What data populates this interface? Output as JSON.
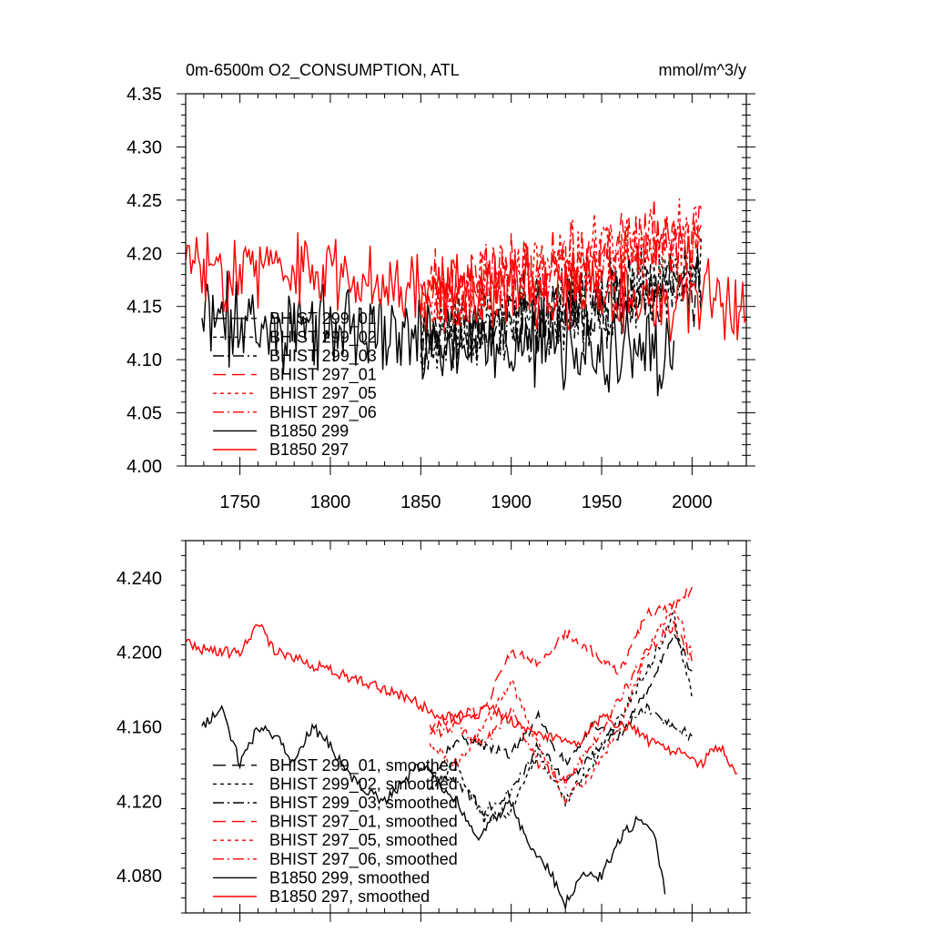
{
  "chart_data": [
    {
      "type": "line",
      "title": "0m-6500m O2_CONSUMPTION, ATL",
      "units": "mmol/m^3/y",
      "xlim": [
        1720,
        2030
      ],
      "ylim": [
        4.0,
        4.35
      ],
      "xticks": [
        1750,
        1800,
        1850,
        1900,
        1950,
        2000
      ],
      "xtick_labels": [
        "1750",
        "1800",
        "1850",
        "1900",
        "1950",
        "2000"
      ],
      "yticks": [
        4.0,
        4.05,
        4.1,
        4.15,
        4.2,
        4.25,
        4.3,
        4.35
      ],
      "ytick_labels": [
        "4.00",
        "4.05",
        "4.10",
        "4.15",
        "4.20",
        "4.25",
        "4.30",
        "4.35"
      ],
      "legend_position": "bottom-left",
      "series": [
        {
          "name": "BHIST 299_01",
          "color": "#000000",
          "dash": "long-dash",
          "x_start": 1850,
          "x_end": 2005,
          "mean_start": 4.12,
          "mean_end": 4.17,
          "amplitude": 0.045,
          "seed": 11
        },
        {
          "name": "BHIST 299_02",
          "color": "#000000",
          "dash": "short-dash",
          "x_start": 1850,
          "x_end": 2005,
          "mean_start": 4.12,
          "mean_end": 4.18,
          "amplitude": 0.045,
          "seed": 23
        },
        {
          "name": "BHIST 299_03",
          "color": "#000000",
          "dash": "dash-dot",
          "x_start": 1850,
          "x_end": 2005,
          "mean_start": 4.125,
          "mean_end": 4.17,
          "amplitude": 0.045,
          "seed": 37
        },
        {
          "name": "BHIST 297_01",
          "color": "#ff0000",
          "dash": "long-dash",
          "x_start": 1850,
          "x_end": 2005,
          "mean_start": 4.16,
          "mean_end": 4.22,
          "amplitude": 0.045,
          "seed": 41
        },
        {
          "name": "BHIST 297_05",
          "color": "#ff0000",
          "dash": "short-dash",
          "x_start": 1850,
          "x_end": 2005,
          "mean_start": 4.155,
          "mean_end": 4.22,
          "amplitude": 0.045,
          "seed": 53
        },
        {
          "name": "BHIST 297_06",
          "color": "#ff0000",
          "dash": "dash-dot",
          "x_start": 1850,
          "x_end": 2005,
          "mean_start": 4.16,
          "mean_end": 4.215,
          "amplitude": 0.045,
          "seed": 67
        },
        {
          "name": "B1850 299",
          "color": "#000000",
          "dash": "solid",
          "x_start": 1729,
          "x_end": 1990,
          "mean_start": 4.14,
          "mean_end": 4.1,
          "amplitude": 0.05,
          "seed": 71
        },
        {
          "name": "B1850 297",
          "color": "#ff0000",
          "dash": "solid",
          "x_start": 1720,
          "x_end": 2030,
          "mean_start": 4.19,
          "mean_end": 4.15,
          "amplitude": 0.045,
          "seed": 83
        }
      ]
    },
    {
      "type": "line",
      "title": "",
      "xlim": [
        1720,
        2030
      ],
      "ylim": [
        4.06,
        4.26
      ],
      "xticks": [
        1750,
        1800,
        1850,
        1900,
        1950,
        2000
      ],
      "yticks": [
        4.08,
        4.12,
        4.16,
        4.2,
        4.24
      ],
      "ytick_labels": [
        "4.080",
        "4.120",
        "4.160",
        "4.200",
        "4.240"
      ],
      "legend_position": "bottom-left",
      "series": [
        {
          "name": "BHIST 299_01, smoothed",
          "color": "#000000",
          "dash": "long-dash",
          "x": [
            1855,
            1870,
            1885,
            1900,
            1915,
            1930,
            1945,
            1960,
            1975,
            1990,
            2000
          ],
          "y": [
            4.13,
            4.155,
            4.15,
            4.145,
            4.165,
            4.14,
            4.16,
            4.155,
            4.18,
            4.21,
            4.19
          ]
        },
        {
          "name": "BHIST 299_02, smoothed",
          "color": "#000000",
          "dash": "short-dash",
          "x": [
            1855,
            1870,
            1885,
            1900,
            1915,
            1930,
            1945,
            1960,
            1975,
            1990,
            2000
          ],
          "y": [
            4.125,
            4.14,
            4.11,
            4.115,
            4.145,
            4.12,
            4.14,
            4.165,
            4.19,
            4.22,
            4.175
          ]
        },
        {
          "name": "BHIST 299_03, smoothed",
          "color": "#000000",
          "dash": "dash-dot",
          "x": [
            1855,
            1870,
            1885,
            1900,
            1915,
            1930,
            1945,
            1960,
            1975,
            1990,
            2000
          ],
          "y": [
            4.135,
            4.13,
            4.115,
            4.125,
            4.15,
            4.13,
            4.145,
            4.16,
            4.17,
            4.16,
            4.155
          ]
        },
        {
          "name": "BHIST 297_01, smoothed",
          "color": "#ff0000",
          "dash": "long-dash",
          "x": [
            1855,
            1870,
            1885,
            1900,
            1915,
            1930,
            1945,
            1960,
            1975,
            1990,
            2000
          ],
          "y": [
            4.16,
            4.165,
            4.17,
            4.2,
            4.195,
            4.21,
            4.2,
            4.19,
            4.22,
            4.225,
            4.235
          ]
        },
        {
          "name": "BHIST 297_05, smoothed",
          "color": "#ff0000",
          "dash": "short-dash",
          "x": [
            1855,
            1870,
            1885,
            1900,
            1915,
            1930,
            1945,
            1960,
            1975,
            1990,
            2000
          ],
          "y": [
            4.15,
            4.14,
            4.16,
            4.185,
            4.15,
            4.12,
            4.135,
            4.16,
            4.2,
            4.225,
            4.2
          ]
        },
        {
          "name": "BHIST 297_06, smoothed",
          "color": "#ff0000",
          "dash": "dash-dot",
          "x": [
            1855,
            1870,
            1885,
            1900,
            1915,
            1930,
            1945,
            1960,
            1975,
            1990,
            2000
          ],
          "y": [
            4.155,
            4.16,
            4.15,
            4.17,
            4.14,
            4.13,
            4.15,
            4.175,
            4.2,
            4.215,
            4.195
          ]
        },
        {
          "name": "B1850 299, smoothed",
          "color": "#000000",
          "dash": "solid",
          "x": [
            1729,
            1740,
            1750,
            1760,
            1770,
            1780,
            1790,
            1800,
            1810,
            1820,
            1830,
            1840,
            1850,
            1860,
            1870,
            1880,
            1890,
            1900,
            1910,
            1920,
            1930,
            1940,
            1950,
            1960,
            1970,
            1980,
            1985
          ],
          "y": [
            4.16,
            4.17,
            4.14,
            4.16,
            4.155,
            4.14,
            4.16,
            4.15,
            4.135,
            4.125,
            4.12,
            4.13,
            4.14,
            4.13,
            4.12,
            4.1,
            4.11,
            4.12,
            4.095,
            4.085,
            4.065,
            4.08,
            4.08,
            4.1,
            4.11,
            4.1,
            4.07
          ]
        },
        {
          "name": "B1850 297, smoothed",
          "color": "#ff0000",
          "dash": "solid",
          "x": [
            1720,
            1735,
            1750,
            1760,
            1770,
            1785,
            1800,
            1815,
            1830,
            1845,
            1860,
            1875,
            1890,
            1905,
            1920,
            1935,
            1950,
            1965,
            1980,
            1995,
            2005,
            2015,
            2025
          ],
          "y": [
            4.205,
            4.2,
            4.2,
            4.215,
            4.2,
            4.195,
            4.19,
            4.185,
            4.18,
            4.175,
            4.165,
            4.165,
            4.17,
            4.16,
            4.155,
            4.15,
            4.165,
            4.16,
            4.15,
            4.145,
            4.14,
            4.15,
            4.135
          ]
        }
      ]
    }
  ]
}
